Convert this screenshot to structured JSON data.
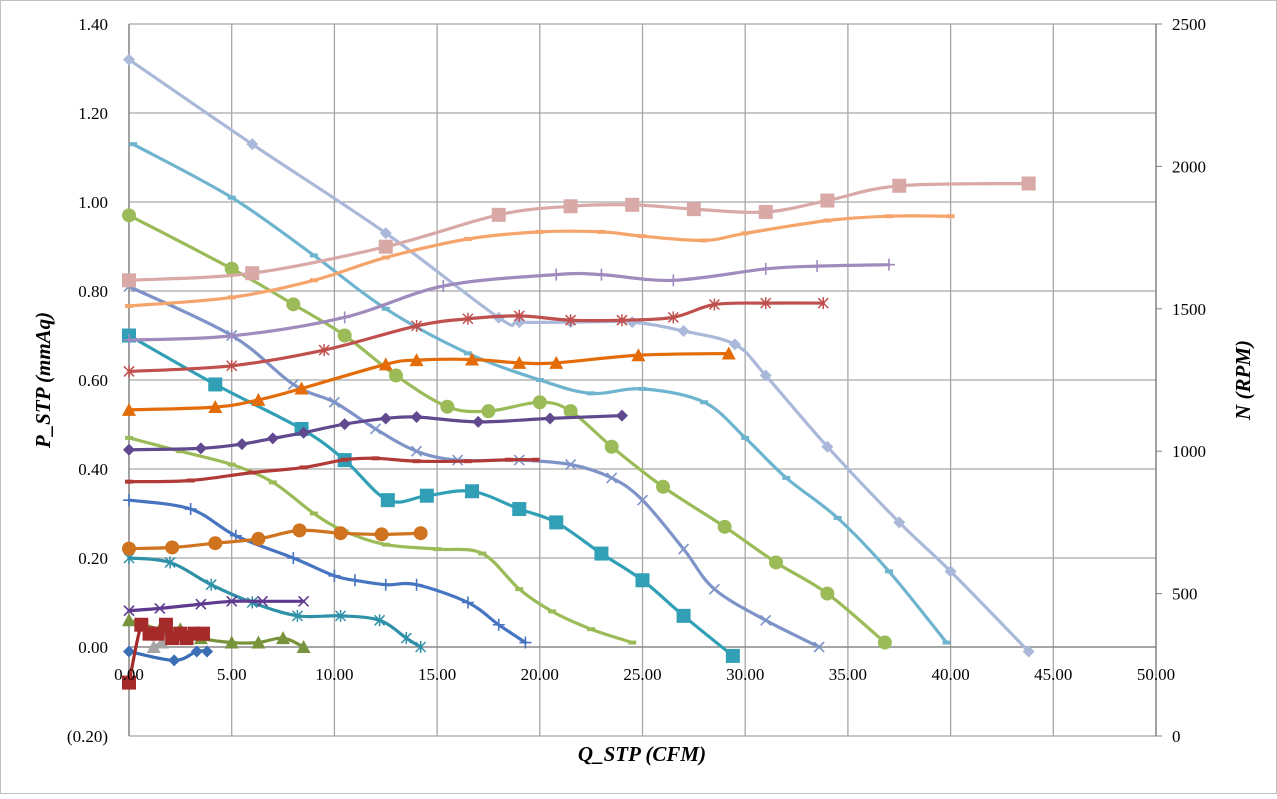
{
  "chart_data": {
    "type": "line",
    "xlabel": "Q_STP (CFM)",
    "ylabel": "P_STP (mmAq)",
    "y2label": "N (RPM)",
    "xlim": [
      0,
      50
    ],
    "ylim": [
      -0.2,
      1.4
    ],
    "y2lim": [
      0,
      2500
    ],
    "x_tick_labels": [
      "0.00",
      "5.00",
      "10.00",
      "15.00",
      "20.00",
      "25.00",
      "30.00",
      "35.00",
      "40.00",
      "45.00",
      "50.00"
    ],
    "y_tick_labels": [
      "(0.20)",
      "0.00",
      "0.20",
      "0.40",
      "0.60",
      "0.80",
      "1.00",
      "1.20",
      "1.40"
    ],
    "y2_tick_labels": [
      "0",
      "500",
      "1000",
      "1500",
      "2000",
      "2500"
    ],
    "grid": true,
    "negative_tick_color": "#C00000",
    "series": [
      {
        "axis": "left",
        "color": "#AAB9D9",
        "marker": "diamond",
        "points": [
          [
            0,
            1.32
          ],
          [
            6,
            1.13
          ],
          [
            12.5,
            0.93
          ],
          [
            18,
            0.74
          ],
          [
            19,
            0.73
          ],
          [
            21.5,
            0.73
          ],
          [
            24.5,
            0.73
          ],
          [
            27,
            0.71
          ],
          [
            29.5,
            0.68
          ],
          [
            31,
            0.61
          ],
          [
            34,
            0.45
          ],
          [
            37.5,
            0.28
          ],
          [
            40,
            0.17
          ],
          [
            43.8,
            -0.01
          ]
        ]
      },
      {
        "axis": "left",
        "color": "#6FB4CF",
        "marker": "dash",
        "points": [
          [
            0.2,
            1.13
          ],
          [
            5,
            1.01
          ],
          [
            9,
            0.88
          ],
          [
            12.5,
            0.76
          ],
          [
            16.5,
            0.66
          ],
          [
            20,
            0.6
          ],
          [
            22.5,
            0.57
          ],
          [
            25,
            0.58
          ],
          [
            28,
            0.55
          ],
          [
            30,
            0.47
          ],
          [
            32,
            0.38
          ],
          [
            34.5,
            0.29
          ],
          [
            37,
            0.17
          ],
          [
            39.8,
            0.01
          ]
        ]
      },
      {
        "axis": "left",
        "color": "#9BBB59",
        "marker": "circle",
        "points": [
          [
            0,
            0.97
          ],
          [
            5,
            0.85
          ],
          [
            8,
            0.77
          ],
          [
            10.5,
            0.7
          ],
          [
            13,
            0.61
          ],
          [
            15.5,
            0.54
          ],
          [
            17.5,
            0.53
          ],
          [
            20,
            0.55
          ],
          [
            21.5,
            0.53
          ],
          [
            23.5,
            0.45
          ],
          [
            26,
            0.36
          ],
          [
            29,
            0.27
          ],
          [
            31.5,
            0.19
          ],
          [
            34,
            0.12
          ],
          [
            36.8,
            0.01
          ]
        ]
      },
      {
        "axis": "left",
        "color": "#7E93C7",
        "marker": "x",
        "points": [
          [
            0,
            0.81
          ],
          [
            5,
            0.7
          ],
          [
            8,
            0.59
          ],
          [
            10,
            0.55
          ],
          [
            12,
            0.49
          ],
          [
            14,
            0.44
          ],
          [
            16,
            0.42
          ],
          [
            19,
            0.42
          ],
          [
            21.5,
            0.41
          ],
          [
            23.5,
            0.38
          ],
          [
            25,
            0.33
          ],
          [
            27,
            0.22
          ],
          [
            28.5,
            0.13
          ],
          [
            31,
            0.06
          ],
          [
            33.6,
            0
          ]
        ]
      },
      {
        "axis": "left",
        "color": "#31A0B7",
        "marker": "square",
        "points": [
          [
            0,
            0.7
          ],
          [
            4.2,
            0.59
          ],
          [
            8.4,
            0.49
          ],
          [
            10.5,
            0.42
          ],
          [
            12.6,
            0.33
          ],
          [
            14.5,
            0.34
          ],
          [
            16.7,
            0.35
          ],
          [
            19,
            0.31
          ],
          [
            20.8,
            0.28
          ],
          [
            23,
            0.21
          ],
          [
            25,
            0.15
          ],
          [
            27,
            0.07
          ],
          [
            29.4,
            -0.02
          ]
        ]
      },
      {
        "axis": "left",
        "color": "#9BBB59",
        "marker": "dash",
        "points": [
          [
            0,
            0.47
          ],
          [
            2.5,
            0.44
          ],
          [
            5,
            0.41
          ],
          [
            7,
            0.37
          ],
          [
            9,
            0.3
          ],
          [
            10.5,
            0.26
          ],
          [
            12.5,
            0.23
          ],
          [
            15,
            0.22
          ],
          [
            17.2,
            0.21
          ],
          [
            19,
            0.13
          ],
          [
            20.6,
            0.08
          ],
          [
            22.5,
            0.04
          ],
          [
            24.5,
            0.01
          ]
        ]
      },
      {
        "axis": "left",
        "color": "#4674C0",
        "marker": "plus",
        "points": [
          [
            0,
            0.33
          ],
          [
            3,
            0.31
          ],
          [
            5.2,
            0.25
          ],
          [
            8,
            0.2
          ],
          [
            10,
            0.16
          ],
          [
            11,
            0.15
          ],
          [
            12.5,
            0.14
          ],
          [
            14,
            0.14
          ],
          [
            16.5,
            0.1
          ],
          [
            18,
            0.05
          ],
          [
            19.3,
            0.01
          ]
        ]
      },
      {
        "axis": "left",
        "color": "#2E91A8",
        "marker": "asterisk",
        "points": [
          [
            0,
            0.2
          ],
          [
            2,
            0.19
          ],
          [
            4,
            0.14
          ],
          [
            6,
            0.1
          ],
          [
            8.2,
            0.07
          ],
          [
            10.3,
            0.07
          ],
          [
            12.2,
            0.06
          ],
          [
            13.5,
            0.02
          ],
          [
            14.2,
            0
          ]
        ]
      },
      {
        "axis": "left",
        "color": "#77933C",
        "marker": "triangle",
        "points": [
          [
            0,
            0.06
          ],
          [
            1.5,
            0.04
          ],
          [
            2.5,
            0.04
          ],
          [
            3.5,
            0.02
          ],
          [
            5,
            0.01
          ],
          [
            6.3,
            0.01
          ],
          [
            7.5,
            0.02
          ],
          [
            8.5,
            0
          ]
        ]
      },
      {
        "axis": "left",
        "color": "#3A6FB5",
        "marker": "diamond",
        "points": [
          [
            0,
            -0.01
          ],
          [
            2.2,
            -0.03
          ],
          [
            3.3,
            -0.01
          ],
          [
            3.8,
            -0.01
          ]
        ]
      },
      {
        "axis": "left",
        "color": "#A5A5A5",
        "marker": "triangle",
        "points": [
          [
            1.2,
            0
          ],
          [
            1.6,
            0.01
          ]
        ]
      },
      {
        "axis": "left",
        "color": "#A52A2A",
        "marker": "square",
        "points": [
          [
            0,
            -0.08
          ],
          [
            0.6,
            0.05
          ],
          [
            1,
            0.03
          ],
          [
            1.4,
            0.03
          ],
          [
            1.8,
            0.05
          ],
          [
            2.1,
            0.02
          ],
          [
            2.5,
            0.03
          ],
          [
            2.8,
            0.02
          ],
          [
            3.2,
            0.03
          ],
          [
            3.6,
            0.03
          ]
        ]
      },
      {
        "axis": "right",
        "color": "#D9A9A8",
        "marker": "square",
        "points": [
          [
            0,
            1600
          ],
          [
            6,
            1625
          ],
          [
            12.5,
            1718
          ],
          [
            18,
            1830
          ],
          [
            21.5,
            1860
          ],
          [
            24.5,
            1865
          ],
          [
            27.5,
            1850
          ],
          [
            31,
            1840
          ],
          [
            34,
            1880
          ],
          [
            37.5,
            1932
          ],
          [
            43.8,
            1940
          ]
        ]
      },
      {
        "axis": "right",
        "color": "#F5A56B",
        "marker": "dash",
        "points": [
          [
            0,
            1510
          ],
          [
            5,
            1540
          ],
          [
            9,
            1600
          ],
          [
            12.5,
            1680
          ],
          [
            16.5,
            1745
          ],
          [
            20,
            1770
          ],
          [
            23,
            1770
          ],
          [
            25,
            1755
          ],
          [
            28,
            1740
          ],
          [
            30,
            1765
          ],
          [
            34,
            1810
          ],
          [
            37,
            1825
          ],
          [
            40,
            1825
          ]
        ]
      },
      {
        "axis": "right",
        "color": "#9F8BBD",
        "marker": "plus",
        "points": [
          [
            0,
            1390
          ],
          [
            5,
            1405
          ],
          [
            10.5,
            1470
          ],
          [
            15.3,
            1580
          ],
          [
            20.8,
            1620
          ],
          [
            23,
            1620
          ],
          [
            26.5,
            1600
          ],
          [
            31,
            1640
          ],
          [
            33.5,
            1650
          ],
          [
            37,
            1655
          ]
        ]
      },
      {
        "axis": "right",
        "color": "#C0504D",
        "marker": "asterisk",
        "points": [
          [
            0,
            1280
          ],
          [
            5,
            1300
          ],
          [
            9.5,
            1355
          ],
          [
            14,
            1440
          ],
          [
            16.5,
            1465
          ],
          [
            19,
            1475
          ],
          [
            21.5,
            1460
          ],
          [
            24,
            1460
          ],
          [
            26.5,
            1470
          ],
          [
            28.5,
            1515
          ],
          [
            31,
            1520
          ],
          [
            33.8,
            1520
          ]
        ]
      },
      {
        "axis": "right",
        "color": "#E36C09",
        "marker": "triangle",
        "points": [
          [
            0,
            1145
          ],
          [
            4.2,
            1155
          ],
          [
            6.3,
            1180
          ],
          [
            8.4,
            1220
          ],
          [
            12.5,
            1305
          ],
          [
            14,
            1320
          ],
          [
            16.7,
            1322
          ],
          [
            19,
            1310
          ],
          [
            20.8,
            1310
          ],
          [
            24.8,
            1337
          ],
          [
            29.2,
            1343
          ]
        ]
      },
      {
        "axis": "right",
        "color": "#60498F",
        "marker": "diamond",
        "points": [
          [
            0,
            1005
          ],
          [
            3.5,
            1010
          ],
          [
            5.5,
            1025
          ],
          [
            7,
            1045
          ],
          [
            8.5,
            1065
          ],
          [
            10.5,
            1095
          ],
          [
            12.5,
            1115
          ],
          [
            14,
            1120
          ],
          [
            17,
            1103
          ],
          [
            20.5,
            1115
          ],
          [
            24,
            1125
          ]
        ]
      },
      {
        "axis": "right",
        "color": "#B23A36",
        "marker": "dash",
        "points": [
          [
            0,
            893
          ],
          [
            3,
            897
          ],
          [
            6,
            925
          ],
          [
            8.5,
            943
          ],
          [
            10.5,
            970
          ],
          [
            12,
            975
          ],
          [
            14,
            965
          ],
          [
            16.5,
            965
          ],
          [
            18.5,
            970
          ],
          [
            19.8,
            970
          ]
        ]
      },
      {
        "axis": "right",
        "color": "#D0731E",
        "marker": "circle",
        "points": [
          [
            0,
            658
          ],
          [
            2.1,
            662
          ],
          [
            4.2,
            677
          ],
          [
            6.3,
            692
          ],
          [
            8.3,
            722
          ],
          [
            10.3,
            712
          ],
          [
            12.3,
            708
          ],
          [
            14.2,
            712
          ]
        ]
      },
      {
        "axis": "right",
        "color": "#5F3A8F",
        "marker": "x",
        "points": [
          [
            0,
            440
          ],
          [
            1.5,
            448
          ],
          [
            3.5,
            463
          ],
          [
            5,
            473
          ],
          [
            6.5,
            473
          ],
          [
            8.5,
            473
          ]
        ]
      }
    ]
  }
}
